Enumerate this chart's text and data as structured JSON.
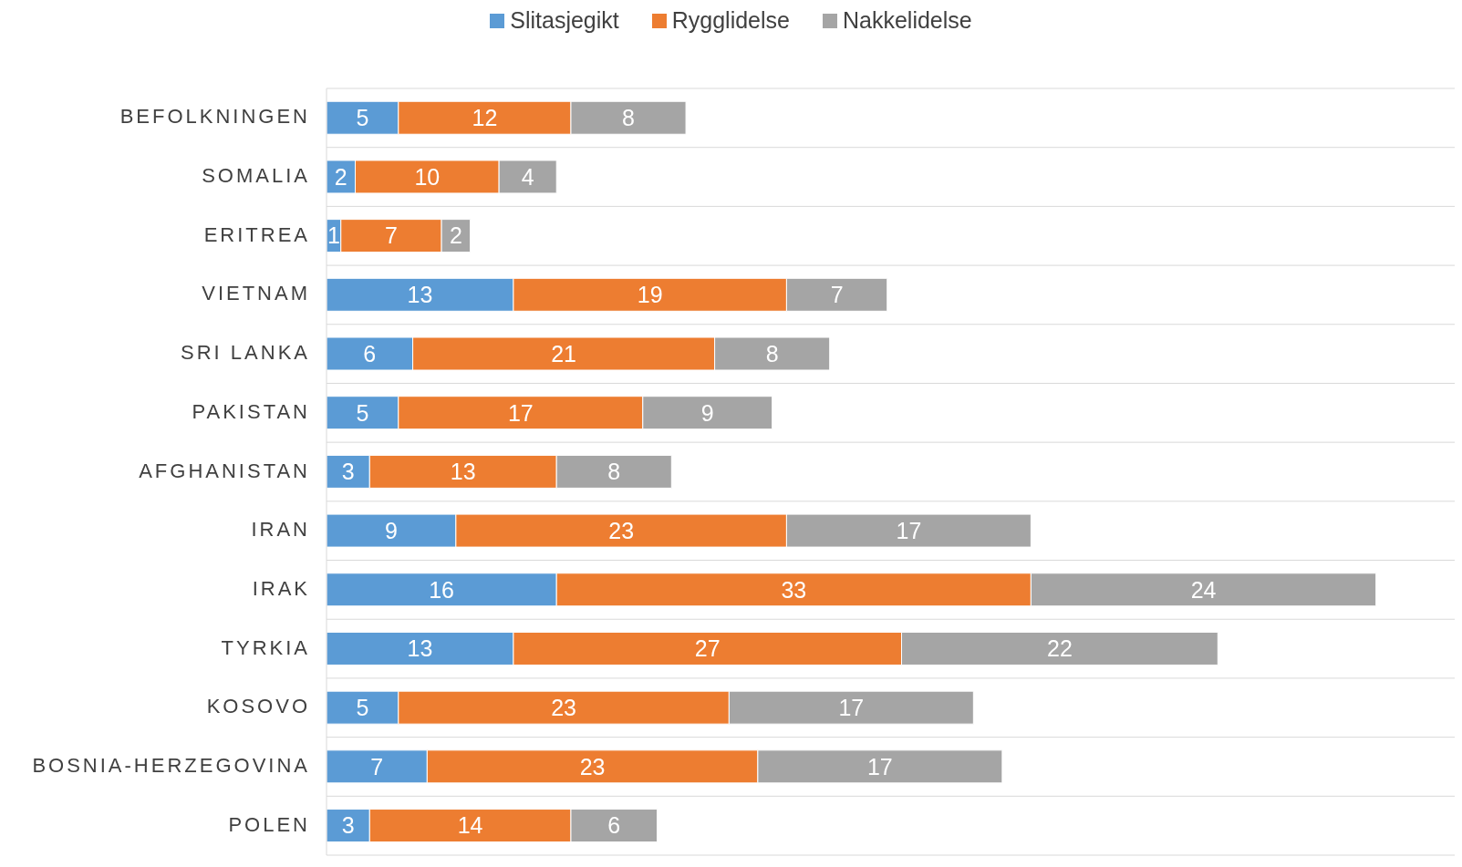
{
  "chart_data": {
    "type": "bar",
    "orientation": "horizontal",
    "stacked": true,
    "data_labels": true,
    "legend": "top",
    "grid": "y",
    "categories": [
      "BEFOLKNINGEN",
      "SOMALIA",
      "ERITREA",
      "VIETNAM",
      "SRI LANKA",
      "PAKISTAN",
      "AFGHANISTAN",
      "IRAN",
      "IRAK",
      "TYRKIA",
      "KOSOVO",
      "BOSNIA-HERZEGOVINA",
      "POLEN"
    ],
    "series": [
      {
        "name": "Slitasjegikt",
        "color": "#5b9bd5",
        "values": [
          5,
          2,
          1,
          13,
          6,
          5,
          3,
          9,
          16,
          13,
          5,
          7,
          3
        ]
      },
      {
        "name": "Rygglidelse",
        "color": "#ed7d31",
        "values": [
          12,
          10,
          7,
          19,
          21,
          17,
          13,
          23,
          33,
          27,
          23,
          23,
          14
        ]
      },
      {
        "name": "Nakkelidelse",
        "color": "#a5a5a5",
        "values": [
          8,
          4,
          2,
          7,
          8,
          9,
          8,
          17,
          24,
          22,
          17,
          17,
          6
        ]
      }
    ]
  }
}
